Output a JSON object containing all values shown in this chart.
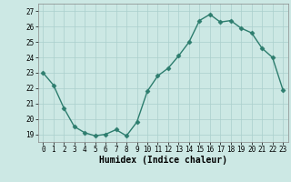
{
  "x": [
    0,
    1,
    2,
    3,
    4,
    5,
    6,
    7,
    8,
    9,
    10,
    11,
    12,
    13,
    14,
    15,
    16,
    17,
    18,
    19,
    20,
    21,
    22,
    23
  ],
  "y": [
    23.0,
    22.2,
    20.7,
    19.5,
    19.1,
    18.9,
    19.0,
    19.3,
    18.9,
    19.8,
    21.8,
    22.8,
    23.3,
    24.1,
    25.0,
    26.4,
    26.8,
    26.3,
    26.4,
    25.9,
    25.6,
    24.6,
    24.0,
    21.9
  ],
  "line_color": "#2d7d6e",
  "marker": "D",
  "markersize": 2.5,
  "bg_color": "#cce8e4",
  "grid_color": "#aacfcc",
  "xlabel": "Humidex (Indice chaleur)",
  "xlim": [
    -0.5,
    23.5
  ],
  "ylim": [
    18.5,
    27.5
  ],
  "yticks": [
    19,
    20,
    21,
    22,
    23,
    24,
    25,
    26,
    27
  ],
  "xtick_labels": [
    "0",
    "1",
    "2",
    "3",
    "4",
    "5",
    "6",
    "7",
    "8",
    "9",
    "10",
    "11",
    "12",
    "13",
    "14",
    "15",
    "16",
    "17",
    "18",
    "19",
    "20",
    "21",
    "22",
    "23"
  ],
  "tick_fontsize": 5.5,
  "xlabel_fontsize": 7.0,
  "linewidth": 1.0
}
